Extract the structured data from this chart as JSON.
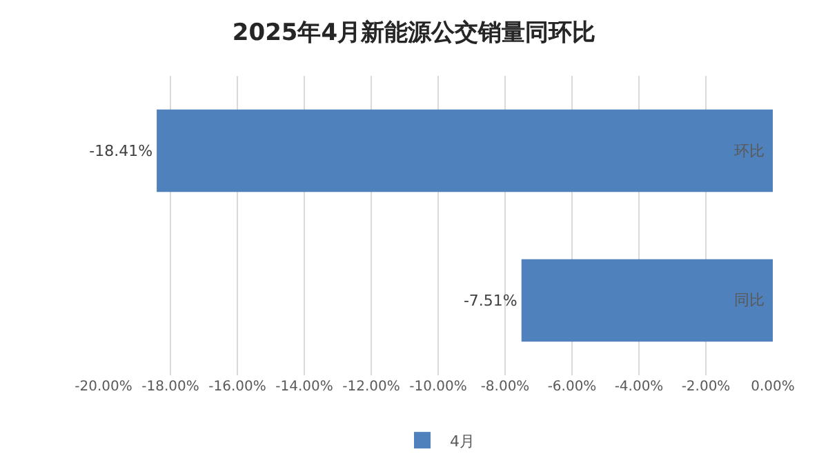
{
  "chart_data": {
    "type": "bar",
    "orientation": "horizontal",
    "title": "2025年4月新能源公交销量同环比",
    "categories": [
      "环比",
      "同比"
    ],
    "series": [
      {
        "name": "4月",
        "color": "#4f81bd",
        "values": [
          -18.41,
          -7.51
        ],
        "value_labels": [
          "-18.41%",
          "-7.51%"
        ]
      }
    ],
    "xlim": [
      -20,
      0
    ],
    "xticks": [
      {
        "value": -20,
        "label": "-20.00%"
      },
      {
        "value": -18,
        "label": "-18.00%"
      },
      {
        "value": -16,
        "label": "-16.00%"
      },
      {
        "value": -14,
        "label": "-14.00%"
      },
      {
        "value": -12,
        "label": "-12.00%"
      },
      {
        "value": -10,
        "label": "-10.00%"
      },
      {
        "value": -8,
        "label": "-8.00%"
      },
      {
        "value": -6,
        "label": "-6.00%"
      },
      {
        "value": -4,
        "label": "-4.00%"
      },
      {
        "value": -2,
        "label": "-2.00%"
      },
      {
        "value": 0,
        "label": "0.00%"
      }
    ],
    "grid": "x",
    "legend": "bottom"
  }
}
